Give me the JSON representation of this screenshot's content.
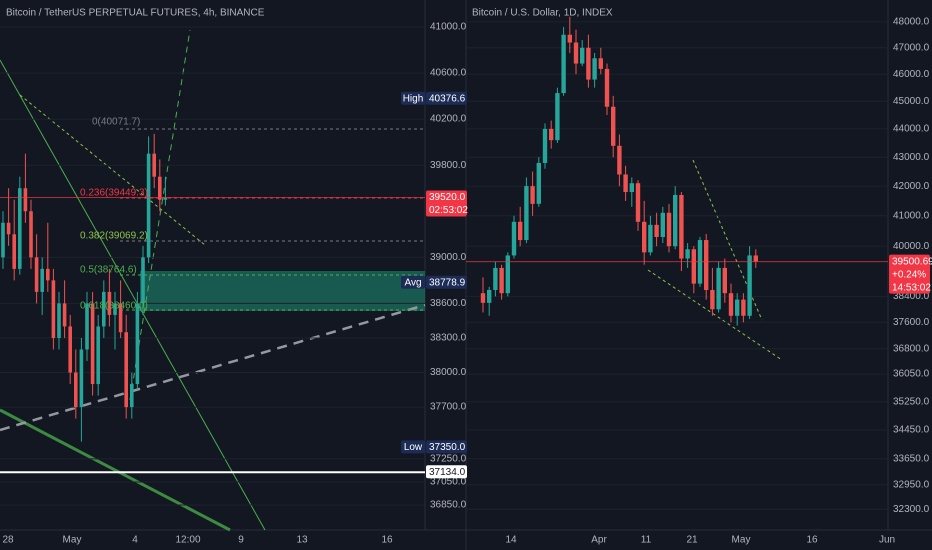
{
  "left_chart": {
    "title": "Bitcoin / TetherUS PERPETUAL FUTURES, 4h, BINANCE",
    "ylim": [
      36633,
      41234
    ],
    "yticks": [
      {
        "value": 41000,
        "label": "41000.0"
      },
      {
        "value": 40600,
        "label": "40600.0"
      },
      {
        "value": 40200,
        "label": "40200.0"
      },
      {
        "value": 39800,
        "label": "39800.0"
      },
      {
        "value": 39000,
        "label": "39000.0"
      },
      {
        "value": 38600,
        "label": "38600.0"
      },
      {
        "value": 38300,
        "label": "38300.0"
      },
      {
        "value": 38000,
        "label": "38000.0"
      },
      {
        "value": 37700,
        "label": "37700.0"
      },
      {
        "value": 37250,
        "label": "37250.0"
      },
      {
        "value": 37050,
        "label": "37050.0"
      },
      {
        "value": 36850,
        "label": "36850.0"
      }
    ],
    "x_labels": [
      "28",
      "May",
      "4",
      "12:00",
      "9",
      "13",
      "16"
    ],
    "fib_labels": [
      "0(40071.7)",
      "0.236(39449.3)",
      "0.382(39069.2)",
      "0.5(38764.6)",
      "0.618(38460.0)"
    ],
    "badges": [
      {
        "tag": "High",
        "value": 40376.6,
        "label": "40376.6"
      },
      {
        "value": 39520,
        "label": "39520.0",
        "sub": "02:53:02"
      },
      {
        "tag": "Avg",
        "value": 38778.9,
        "label": "38778.9"
      },
      {
        "tag": "Low",
        "value": 37350,
        "label": "37350.0"
      },
      {
        "value": 37134,
        "label": "37134.0"
      }
    ],
    "candles": [
      [
        39000,
        39400,
        38900,
        39300
      ],
      [
        39300,
        39600,
        39100,
        39200
      ],
      [
        39200,
        39500,
        38800,
        38900
      ],
      [
        38900,
        39700,
        38850,
        39600
      ],
      [
        39600,
        39900,
        39300,
        39400
      ],
      [
        39400,
        39500,
        38900,
        39000
      ],
      [
        39000,
        39200,
        38600,
        38700
      ],
      [
        38700,
        39000,
        38500,
        38900
      ],
      [
        38900,
        39300,
        38700,
        38800
      ],
      [
        38800,
        38900,
        38200,
        38300
      ],
      [
        38300,
        38700,
        38200,
        38600
      ],
      [
        38600,
        38800,
        38300,
        38400
      ],
      [
        38400,
        38500,
        37900,
        38000
      ],
      [
        38000,
        38200,
        37600,
        37700
      ],
      [
        37700,
        38300,
        37400,
        38200
      ],
      [
        38200,
        38700,
        38100,
        38600
      ],
      [
        38600,
        38700,
        37800,
        37900
      ],
      [
        37900,
        38500,
        37800,
        38400
      ],
      [
        38400,
        38800,
        38300,
        38700
      ],
      [
        38700,
        38900,
        38400,
        38500
      ],
      [
        38500,
        38700,
        38200,
        38600
      ],
      [
        38600,
        38800,
        38300,
        38350
      ],
      [
        38350,
        38500,
        37600,
        37700
      ],
      [
        37700,
        38000,
        37600,
        37900
      ],
      [
        37900,
        38700,
        37850,
        38600
      ],
      [
        38600,
        39100,
        38500,
        39000
      ],
      [
        39000,
        40050,
        38950,
        39900
      ],
      [
        39900,
        40072,
        39600,
        39700
      ],
      [
        39700,
        39850,
        39400,
        39500
      ],
      [
        39500,
        39700,
        39450,
        39520
      ]
    ]
  },
  "right_chart": {
    "title": "Bitcoin / U.S. Dollar, 1D, INDEX",
    "log_scale": true,
    "ylim": [
      31760,
      48860
    ],
    "yticks": [
      {
        "value": 48000,
        "label": "48000.0"
      },
      {
        "value": 47000,
        "label": "47000.0"
      },
      {
        "value": 46000,
        "label": "46000.0"
      },
      {
        "value": 45000,
        "label": "45000.0"
      },
      {
        "value": 44000,
        "label": "44000.0"
      },
      {
        "value": 43000,
        "label": "43000.0"
      },
      {
        "value": 42000,
        "label": "42000.0"
      },
      {
        "value": 41000,
        "label": "41000.0"
      },
      {
        "value": 40000,
        "label": "40000.0"
      },
      {
        "value": 38400,
        "label": "38400.0"
      },
      {
        "value": 37600,
        "label": "37600.0"
      },
      {
        "value": 36800,
        "label": "36800.0"
      },
      {
        "value": 36050,
        "label": "36050.0"
      },
      {
        "value": 35250,
        "label": "35250.0"
      },
      {
        "value": 34450,
        "label": "34450.0"
      },
      {
        "value": 33650,
        "label": "33650.0"
      },
      {
        "value": 32950,
        "label": "32950.0"
      },
      {
        "value": 32300,
        "label": "32300.0"
      }
    ],
    "x_labels": [
      "14",
      "Apr",
      "11",
      "21",
      "May",
      "16",
      "Jun"
    ],
    "badges": [
      {
        "value": 39500.69,
        "label": "39500.69",
        "change": "+0.24%",
        "sub": "14:53:02"
      }
    ],
    "candles": [
      [
        38500,
        39000,
        37900,
        38200
      ],
      [
        38200,
        38700,
        37800,
        38600
      ],
      [
        38600,
        39500,
        38400,
        39300
      ],
      [
        39300,
        39400,
        38300,
        38500
      ],
      [
        38500,
        39800,
        38400,
        39700
      ],
      [
        39700,
        41000,
        39600,
        40800
      ],
      [
        40800,
        41300,
        40000,
        40200
      ],
      [
        40200,
        42300,
        40100,
        42000
      ],
      [
        42000,
        42500,
        41000,
        41400
      ],
      [
        41400,
        43000,
        41300,
        42800
      ],
      [
        42800,
        44200,
        42600,
        44000
      ],
      [
        44000,
        44300,
        43300,
        43600
      ],
      [
        43600,
        45500,
        43500,
        45300
      ],
      [
        45300,
        47800,
        45200,
        47500
      ],
      [
        47500,
        48200,
        46800,
        47200
      ],
      [
        47200,
        47700,
        46000,
        46400
      ],
      [
        46400,
        47300,
        46300,
        47000
      ],
      [
        47000,
        47500,
        45500,
        45800
      ],
      [
        45800,
        46800,
        45500,
        46600
      ],
      [
        46600,
        47000,
        46000,
        46200
      ],
      [
        46200,
        46400,
        44500,
        44800
      ],
      [
        44800,
        45200,
        43000,
        43400
      ],
      [
        43400,
        43800,
        42000,
        42400
      ],
      [
        42400,
        42700,
        41500,
        41800
      ],
      [
        41800,
        42300,
        41300,
        42100
      ],
      [
        42100,
        42200,
        40500,
        40800
      ],
      [
        40800,
        41500,
        39400,
        39800
      ],
      [
        39800,
        41000,
        39700,
        40700
      ],
      [
        40700,
        41100,
        40000,
        40300
      ],
      [
        40300,
        41300,
        40100,
        41100
      ],
      [
        41100,
        41400,
        39800,
        40000
      ],
      [
        40000,
        42000,
        39900,
        41700
      ],
      [
        41700,
        41800,
        39200,
        39600
      ],
      [
        39600,
        40100,
        39300,
        39900
      ],
      [
        39900,
        40000,
        38500,
        38800
      ],
      [
        38800,
        40300,
        38700,
        40200
      ],
      [
        40200,
        40400,
        38300,
        38600
      ],
      [
        38600,
        39300,
        37800,
        38000
      ],
      [
        38000,
        39500,
        37900,
        39300
      ],
      [
        39300,
        39600,
        38200,
        38500
      ],
      [
        38500,
        38800,
        37600,
        37800
      ],
      [
        37800,
        38500,
        37500,
        38300
      ],
      [
        38300,
        38500,
        37600,
        37800
      ],
      [
        37800,
        40000,
        37700,
        39700
      ],
      [
        39700,
        39900,
        39300,
        39500
      ]
    ]
  }
}
